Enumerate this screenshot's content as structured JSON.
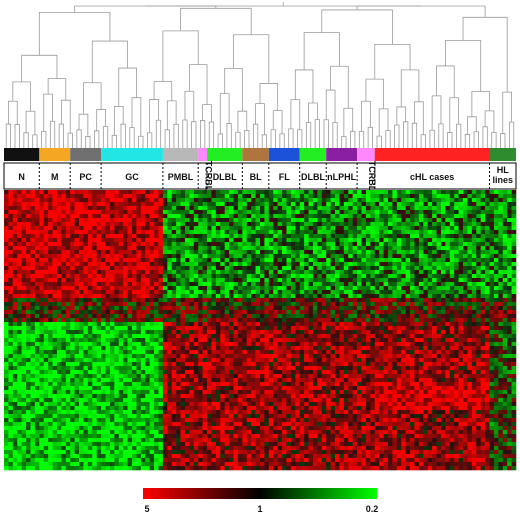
{
  "chart_data": {
    "type": "heatmap",
    "title": "",
    "groups": [
      {
        "label": "N",
        "color": "#111111",
        "columns": 8
      },
      {
        "label": "M",
        "color": "#f5a623",
        "columns": 7
      },
      {
        "label": "PC",
        "color": "#707070",
        "columns": 7
      },
      {
        "label": "GC",
        "color": "#22e5e5",
        "columns": 14
      },
      {
        "label": "PMBL",
        "color": "#b8b8b8",
        "columns": 8
      },
      {
        "label": "TCRBL",
        "color": "#ff88ff",
        "columns": 2
      },
      {
        "label": "DLBL",
        "color": "#22ee22",
        "columns": 8
      },
      {
        "label": "BL",
        "color": "#b0753c",
        "columns": 6
      },
      {
        "label": "FL",
        "color": "#1b52d8",
        "columns": 7
      },
      {
        "label": "DLBL",
        "color": "#22ee22",
        "columns": 6
      },
      {
        "label": "nLPHL",
        "color": "#8b1fa3",
        "columns": 7
      },
      {
        "label": "TCRBL",
        "color": "#ff88ff",
        "columns": 4
      },
      {
        "label": "cHL cases",
        "color": "#ff2222",
        "columns": 26
      },
      {
        "label": "HL lines",
        "color": "#2e8b2e",
        "columns": 6
      }
    ],
    "color_scale": {
      "ticks": [
        "5",
        "1",
        "0.2"
      ],
      "values": [
        5,
        1,
        0.2
      ],
      "colors": [
        "#ff0000",
        "#000000",
        "#00ff00"
      ]
    },
    "dendrogram": true,
    "legend_placement": "bottom"
  }
}
